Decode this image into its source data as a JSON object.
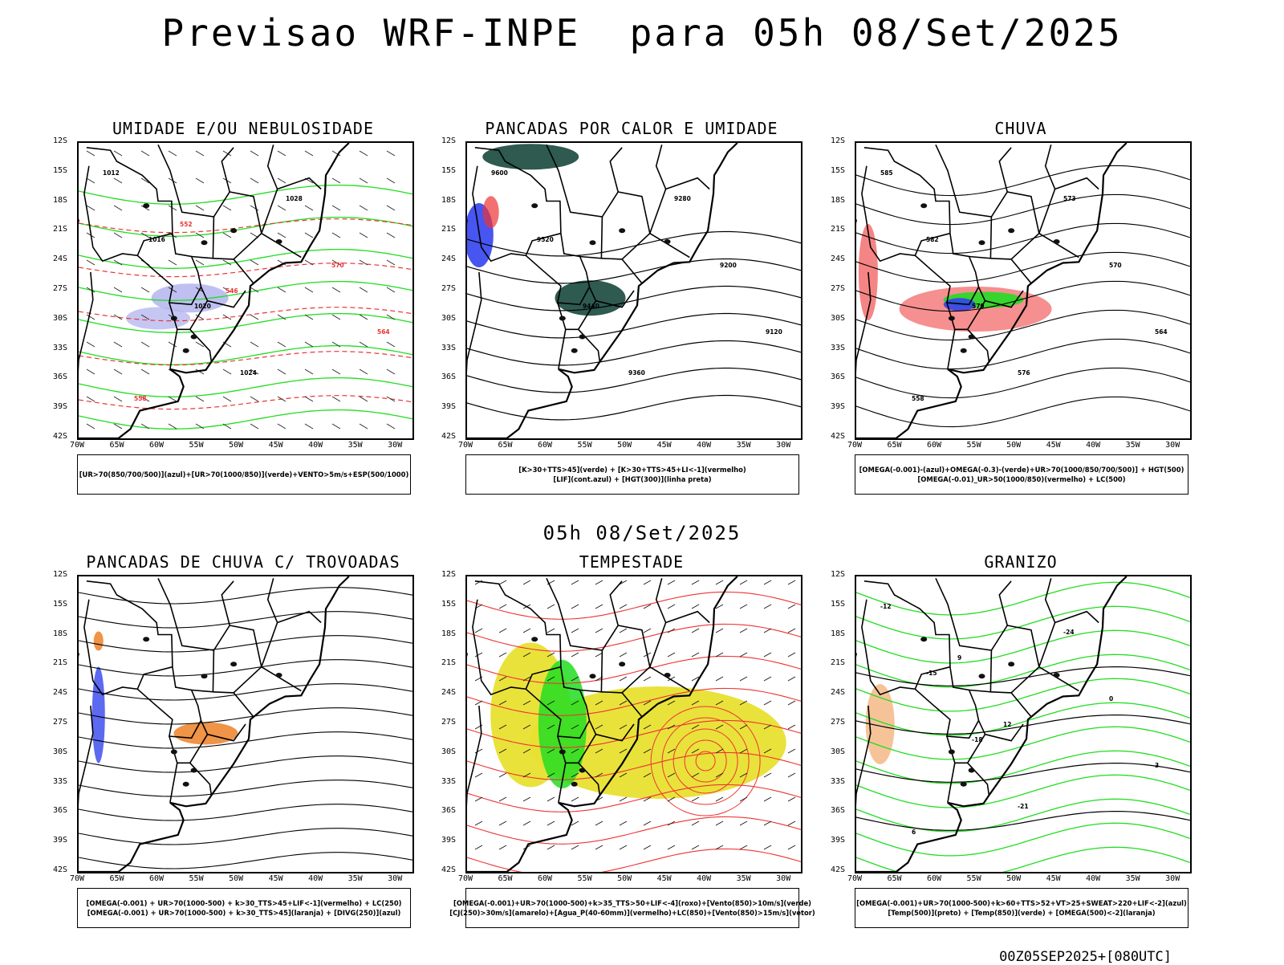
{
  "title": "Previsao WRF-INPE  para 05h 08/Set/2025",
  "subtitle": "05h 08/Set/2025",
  "footer": "00Z05SEP2025+[080UTC]",
  "axes": {
    "lat_labels": [
      "12S",
      "15S",
      "18S",
      "21S",
      "24S",
      "27S",
      "30S",
      "33S",
      "36S",
      "39S",
      "42S"
    ],
    "lon_labels": [
      "70W",
      "65W",
      "60W",
      "55W",
      "50W",
      "45W",
      "40W",
      "35W",
      "30W"
    ]
  },
  "colors": {
    "umidade_alta": "#b8b8f0",
    "umidade_verde": "#22dd22",
    "vermelho": "#ee3333",
    "laranja": "#ee8833",
    "azul": "#3344ee",
    "amarelo": "#e8e030",
    "verde_escuro": "#2e5a50"
  },
  "panels": [
    {
      "title": "UMIDADE E/OU NEBULOSIDADE",
      "legend": [
        "[UR>70(850/700/500)](azul)+[UR>70(1000/850)](verde)+VENTO>5m/s+ESP(500/1000)"
      ],
      "contour_labels": [
        "1012",
        "1016",
        "1020",
        "1024",
        "1028",
        "570",
        "564",
        "558",
        "552",
        "546"
      ]
    },
    {
      "title": "PANCADAS POR CALOR E UMIDADE",
      "legend": [
        "[K>30+TTS>45](verde) + [K>30+TTS>45+LI<-1](vermelho)",
        "[LIF](cont.azul) + [HGT(300)](linha preta)"
      ],
      "contour_labels": [
        "9600",
        "9520",
        "9440",
        "9360",
        "9280",
        "9200",
        "9120"
      ]
    },
    {
      "title": "CHUVA",
      "legend": [
        "[OMEGA(-0.001)-(azul)+OMEGA(-0.3)-(verde)+UR>70(1000/850/700/500)] + HGT(500)",
        "[OMEGA(-0.01)_UR>50(1000/850)(vermelho) + LC(500)"
      ],
      "contour_labels": [
        "585",
        "582",
        "579",
        "576",
        "573",
        "570",
        "564",
        "558"
      ]
    },
    {
      "title": "PANCADAS DE CHUVA C/ TROVOADAS",
      "legend": [
        "[OMEGA(-0.001) + UR>70(1000-500) + k>30_TTS>45+LIF<-1](vermelho) + LC(250)",
        "[OMEGA(-0.001) + UR>70(1000-500) + k>30_TTS>45](laranja) + [DIVG(250)](azul)"
      ],
      "contour_labels": []
    },
    {
      "title": "TEMPESTADE",
      "legend": [
        "[OMEGA(-0.001)+UR>70(1000-500)+k>35_TTS>50+LIF<-4](roxo)+[Vento(850)>10m/s](verde)",
        "[CJ(250)>30m/s](amarelo)+[Agua_P(40-60mm)](vermelho)+LC(850)+[Vento(850)>15m/s](vetor)"
      ],
      "contour_labels": []
    },
    {
      "title": "GRANIZO",
      "legend": [
        "[OMEGA(-0.001)+UR>70(1000-500)+k>60+TTS>52+VT>25+SWEAT>220+LIF<-2](azul)",
        "[Temp(500)](preto) + [Temp(850)](verde) + [OMEGA(500)<-2](laranja)"
      ],
      "contour_labels": [
        "-12",
        "-15",
        "-18",
        "-21",
        "-24",
        "0",
        "3",
        "6",
        "9",
        "12"
      ]
    }
  ]
}
